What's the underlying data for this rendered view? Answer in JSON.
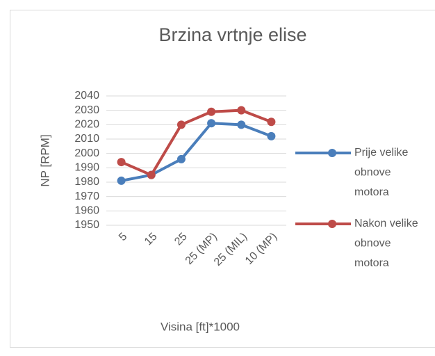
{
  "chart_data": {
    "type": "line",
    "title": "Brzina vrtnje elise",
    "x_label": "Visina [ft]*1000",
    "y_label": "NP [RPM]",
    "categories": [
      "5",
      "15",
      "25",
      "25 (MP)",
      "25 (MIL)",
      "10 (MP)"
    ],
    "series": [
      {
        "name": "Prije velike obnove motora",
        "color": "#4a7ebb",
        "values": [
          1981,
          1985,
          1996,
          2021,
          2020,
          2012
        ]
      },
      {
        "name": "Nakon velike obnove motora",
        "color": "#be4b48",
        "values": [
          1994,
          1985,
          2020,
          2029,
          2030,
          2022
        ]
      }
    ],
    "ylim": [
      1950,
      2040
    ],
    "yticks": [
      1950,
      1960,
      1970,
      1980,
      1990,
      2000,
      2010,
      2020,
      2030,
      2040
    ],
    "grid": true,
    "legend": "right"
  }
}
